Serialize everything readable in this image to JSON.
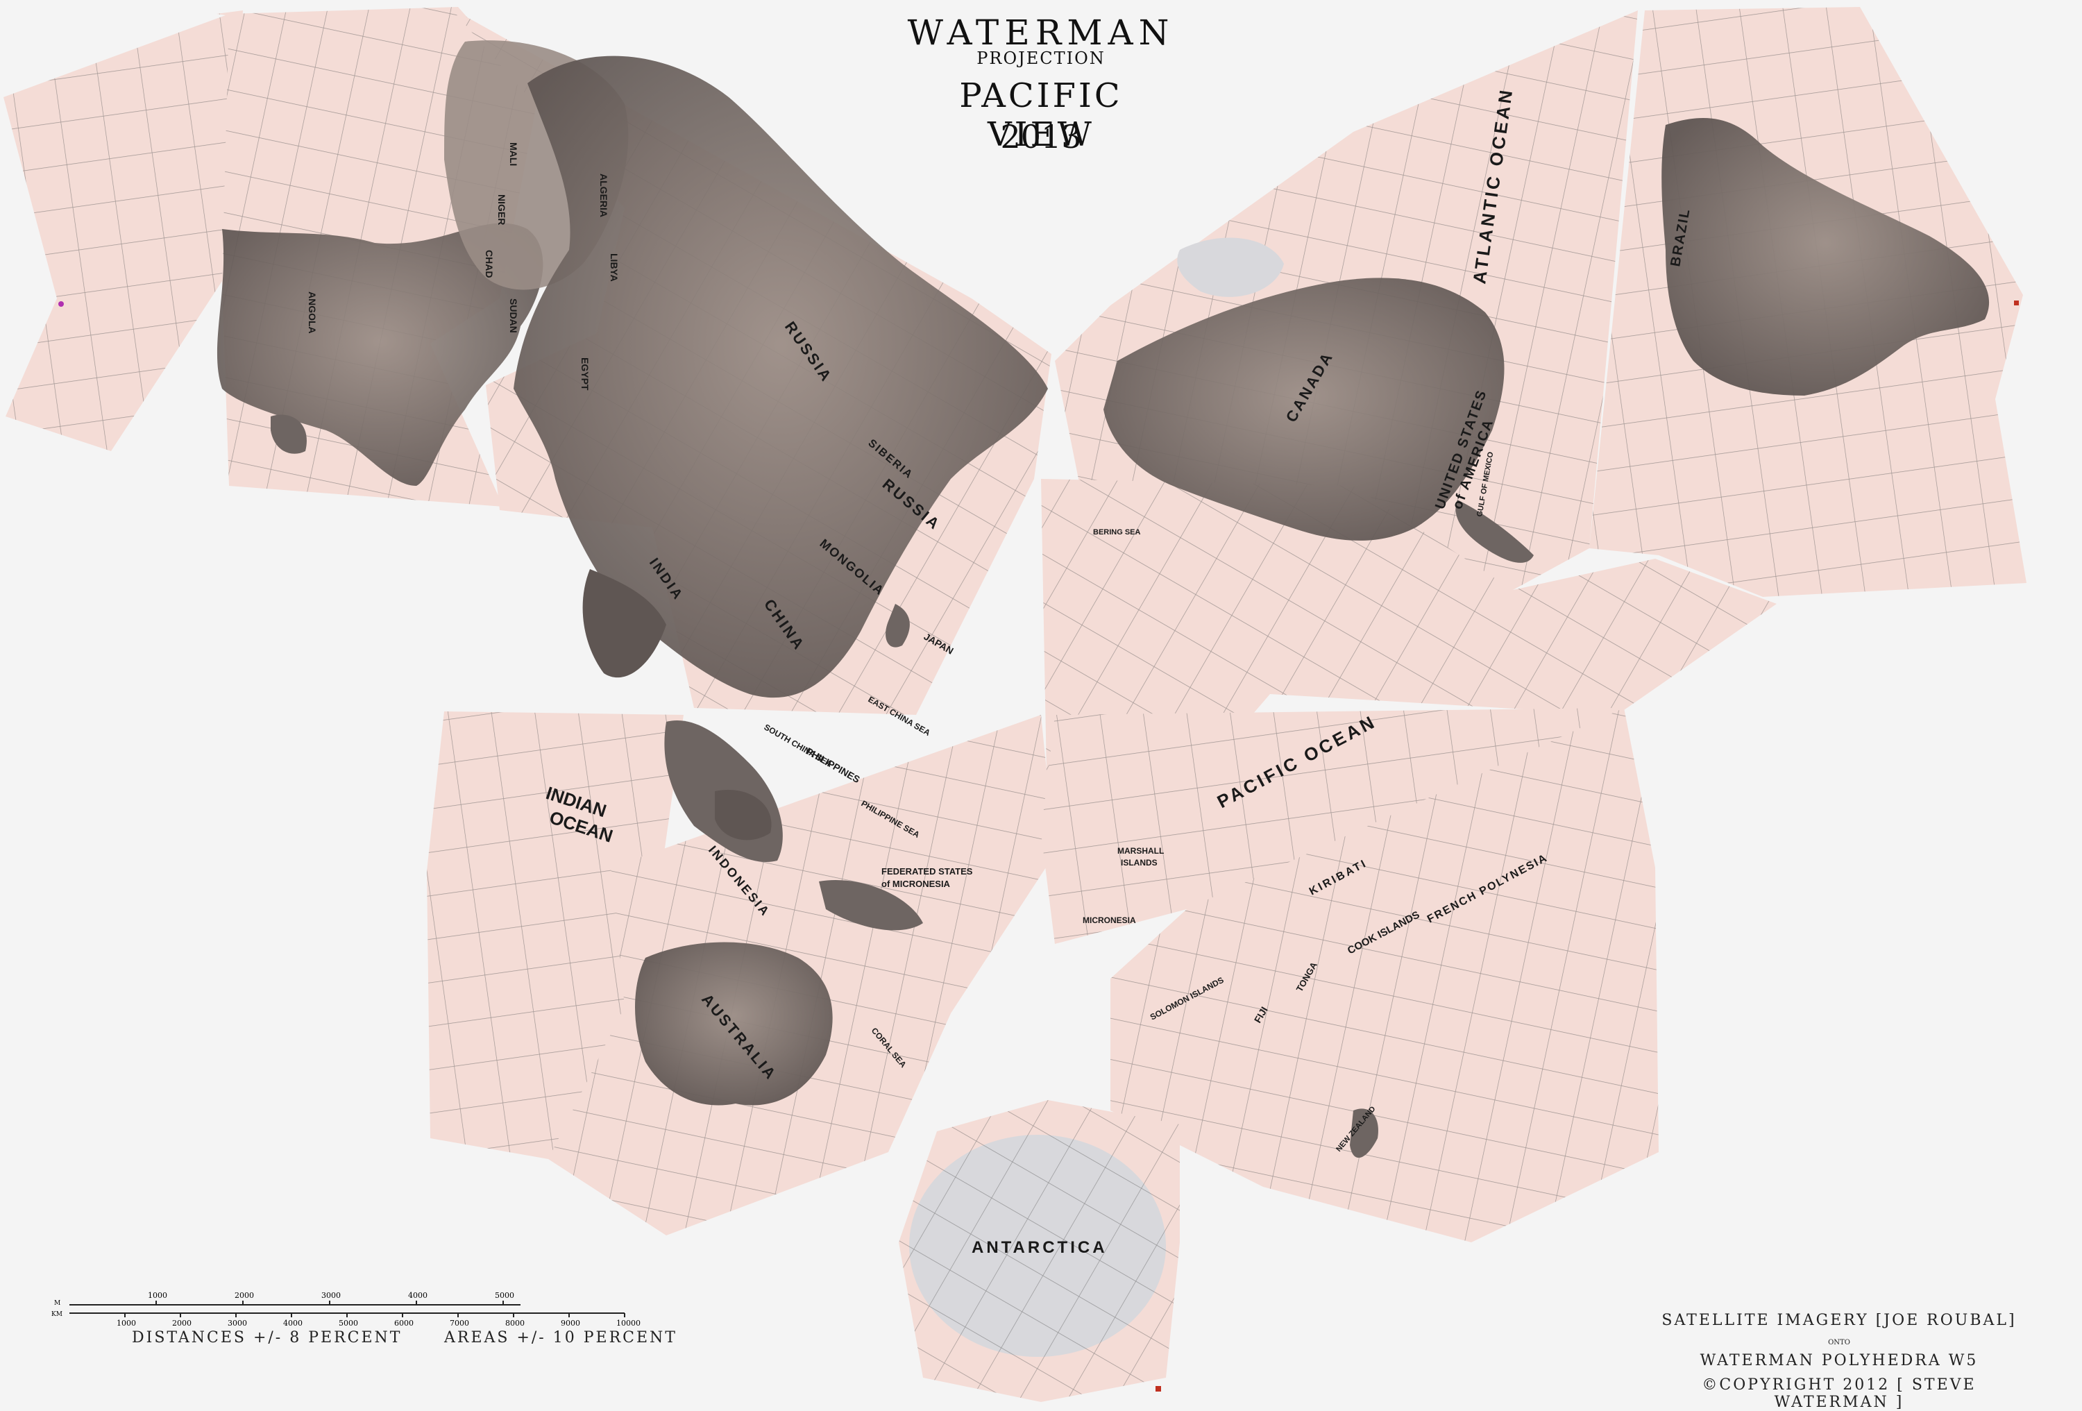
{
  "title": {
    "line1": "WATERMAN",
    "line2": "PROJECTION",
    "line3": "PACIFIC VIEW",
    "line4": "2013"
  },
  "credits": {
    "line1": "SATELLITE IMAGERY [JOE ROUBAL]",
    "line2": "onto",
    "line3": "WATERMAN POLYHEDRA W5",
    "line4": "©COPYRIGHT 2012 [ STEVE WATERMAN ]"
  },
  "scale": {
    "unit_top": "M",
    "unit_bottom": "KM",
    "miles_ticks": [
      "1000",
      "2000",
      "3000",
      "4000",
      "5000"
    ],
    "km_ticks": [
      "1000",
      "2000",
      "3000",
      "4000",
      "5000",
      "6000",
      "7000",
      "8000",
      "9000",
      "10000"
    ],
    "distances_caption": "DISTANCES +/- 8 PERCENT",
    "areas_caption": "AREAS +/- 10 PERCENT"
  },
  "labels": {
    "indian_ocean_1": "INDIAN",
    "indian_ocean_2": "OCEAN",
    "pacific_ocean": "PACIFIC OCEAN",
    "atlantic_ocean": "ATLANTIC OCEAN",
    "antarctica": "ANTARCTICA",
    "australia": "AUSTRALIA",
    "russia_1": "RUSSIA",
    "russia_2": "RUSSIA",
    "china": "CHINA",
    "india": "INDIA",
    "mongolia": "MONGOLIA",
    "siberia": "SIBERIA",
    "canada": "CANADA",
    "united_states": "UNITED STATES",
    "of_america": "of AMERICA",
    "brazil": "BRAZIL",
    "algeria": "ALGERIA",
    "libya": "LIBYA",
    "egypt": "EGYPT",
    "niger": "NIGER",
    "chad": "CHAD",
    "mali": "MALI",
    "sudan": "SUDAN",
    "angola": "ANGOLA",
    "indonesia": "INDONESIA",
    "philippines": "PHILIPPINES",
    "japan": "JAPAN",
    "kiribati": "KIRIBATI",
    "french_polynesia": "FRENCH POLYNESIA",
    "micronesia_states": "FEDERATED STATES",
    "micronesia_of": "of MICRONESIA",
    "micronesia": "MICRONESIA",
    "marshall_1": "MARSHALL",
    "marshall_2": "ISLANDS",
    "cook_islands": "COOK ISLANDS",
    "solomon_islands": "SOLOMON ISLANDS",
    "fiji": "FIJI",
    "tonga": "TONGA",
    "south_china_sea": "SOUTH CHINA SEA",
    "philippine_sea": "PHILIPPINE SEA",
    "east_china_sea": "EAST CHINA SEA",
    "coral_sea": "CORAL SEA",
    "new_zealand": "NEW ZEALAND",
    "bering_sea": "BERING SEA",
    "gulf_of_mexico": "GULF OF MEXICO"
  },
  "colors": {
    "ocean": "#f4dcd6",
    "land": "#6e6562",
    "land_light": "#9a8d86",
    "grid": "#5b5b5b",
    "ice": "#d8d8dc",
    "background": "#f4f4f4"
  },
  "icons": {
    "north_marker": "magenta-dot-icon",
    "corner_marker": "red-square-icon"
  }
}
